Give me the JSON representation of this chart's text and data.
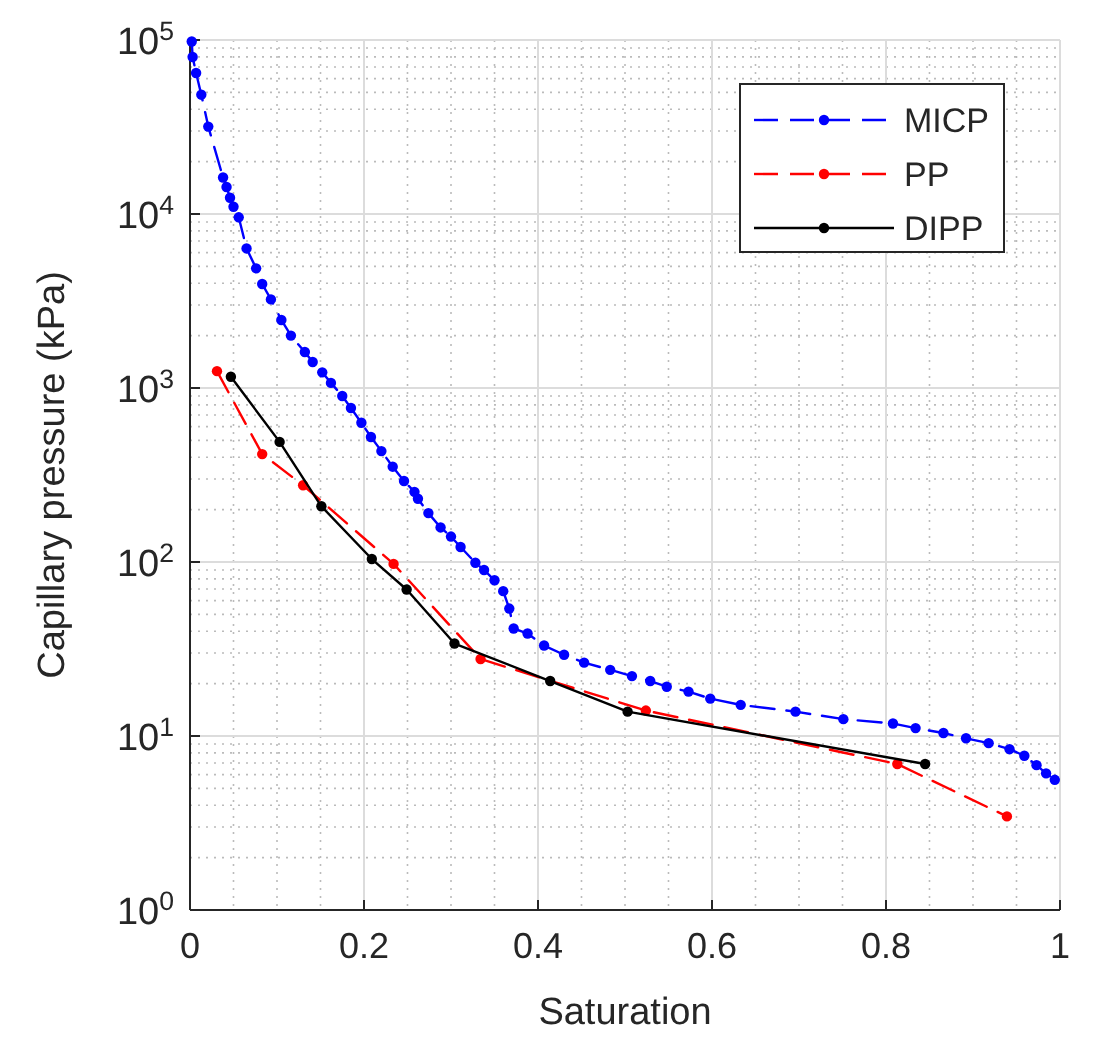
{
  "chart_data": {
    "type": "line",
    "xlabel": "Saturation",
    "ylabel": "Capillary pressure (kPa)",
    "log": "y",
    "grid": true,
    "legend": "top right",
    "marker": "circle",
    "xlim": [
      0,
      1
    ],
    "xticks": [
      0,
      0.2,
      0.4,
      0.6,
      0.8,
      1
    ],
    "ylim": [
      1,
      100000
    ],
    "yticks": [
      {
        "value": 1,
        "label": "10$^{0}$"
      },
      {
        "value": 10,
        "label": "10$^{1}$"
      },
      {
        "value": 100,
        "label": "10$^{2}$"
      },
      {
        "value": 1000,
        "label": "10$^{3}$"
      },
      {
        "value": 10000,
        "label": "10$^{4}$"
      },
      {
        "value": 100000,
        "label": "10$^{5}$"
      }
    ],
    "series": [
      {
        "name": "MICP",
        "color": "#0000ff",
        "line_style": "dashed",
        "x": [
          0.002,
          0.003,
          0.007,
          0.013,
          0.021,
          0.038,
          0.042,
          0.046,
          0.05,
          0.056,
          0.065,
          0.076,
          0.083,
          0.093,
          0.105,
          0.116,
          0.132,
          0.141,
          0.152,
          0.162,
          0.175,
          0.185,
          0.197,
          0.208,
          0.22,
          0.233,
          0.246,
          0.258,
          0.262,
          0.274,
          0.288,
          0.3,
          0.311,
          0.328,
          0.338,
          0.35,
          0.36,
          0.367,
          0.372,
          0.388,
          0.407,
          0.43,
          0.453,
          0.483,
          0.508,
          0.529,
          0.548,
          0.573,
          0.598,
          0.633,
          0.696,
          0.751,
          0.808,
          0.834,
          0.866,
          0.892,
          0.918,
          0.942,
          0.959,
          0.973,
          0.984,
          0.994
        ],
        "values": [
          98000,
          79800,
          64600,
          48500,
          31800,
          16200,
          14300,
          12400,
          11000,
          9570,
          6340,
          4870,
          3960,
          3230,
          2460,
          2000,
          1610,
          1410,
          1230,
          1070,
          900,
          767,
          631,
          523,
          434,
          353,
          292,
          253,
          231,
          191,
          158,
          140,
          122,
          99,
          90,
          78.5,
          68,
          54,
          41.5,
          38.8,
          33.1,
          29.3,
          26.4,
          24,
          22.1,
          20.7,
          19.2,
          18,
          16.4,
          15.1,
          13.8,
          12.5,
          11.8,
          11.1,
          10.4,
          9.7,
          9.1,
          8.4,
          7.7,
          6.8,
          6.1,
          5.6
        ]
      },
      {
        "name": "PP",
        "color": "#ff0000",
        "line_style": "dashed",
        "x": [
          0.031,
          0.083,
          0.13,
          0.234,
          0.334,
          0.524,
          0.813,
          0.939
        ],
        "values": [
          1250,
          417,
          276,
          97.5,
          27.7,
          14,
          6.9,
          3.45
        ]
      },
      {
        "name": "DIPP",
        "color": "#000000",
        "line_style": "solid",
        "x": [
          0.047,
          0.103,
          0.151,
          0.209,
          0.249,
          0.304,
          0.414,
          0.503,
          0.845
        ],
        "values": [
          1160,
          490,
          209,
          104,
          69.5,
          34,
          20.7,
          13.8,
          6.9
        ]
      }
    ]
  }
}
